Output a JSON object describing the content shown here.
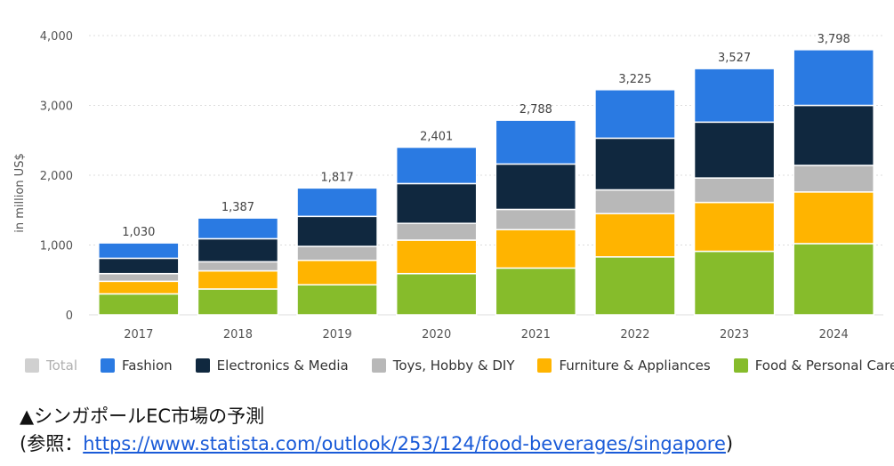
{
  "chart_data": {
    "type": "bar",
    "stacked": true,
    "categories": [
      "2017",
      "2018",
      "2019",
      "2020",
      "2021",
      "2022",
      "2023",
      "2024"
    ],
    "series": [
      {
        "name": "Food & Personal Care",
        "color": "#86bc2b",
        "values": [
          300,
          370,
          430,
          590,
          670,
          830,
          910,
          1020
        ]
      },
      {
        "name": "Furniture & Appliances",
        "color": "#ffb400",
        "values": [
          180,
          260,
          350,
          480,
          550,
          620,
          700,
          740
        ]
      },
      {
        "name": "Toys, Hobby & DIY",
        "color": "#b8b8b8",
        "values": [
          110,
          130,
          200,
          240,
          290,
          340,
          350,
          380
        ]
      },
      {
        "name": "Electronics & Media",
        "color": "#10283f",
        "values": [
          220,
          330,
          430,
          570,
          650,
          740,
          800,
          860
        ]
      },
      {
        "name": "Fashion",
        "color": "#2a7ae2",
        "values": [
          220,
          297,
          407,
          521,
          628,
          695,
          767,
          798
        ]
      }
    ],
    "totals": [
      1030,
      1387,
      1817,
      2401,
      2788,
      3225,
      3527,
      3798
    ],
    "total_labels": [
      "1,030",
      "1,387",
      "1,817",
      "2,401",
      "2,788",
      "3,225",
      "3,527",
      "3,798"
    ],
    "ylabel": "in million US$",
    "ylim": [
      0,
      4000
    ],
    "yticks": [
      0,
      1000,
      2000,
      3000,
      4000
    ],
    "ytick_labels": [
      "0",
      "1,000",
      "2,000",
      "3,000",
      "4,000"
    ],
    "grid": true,
    "legend_position": "bottom"
  },
  "legend": [
    {
      "label": "Total",
      "color": "#d0d0d0",
      "muted": true
    },
    {
      "label": "Fashion",
      "color": "#2a7ae2"
    },
    {
      "label": "Electronics & Media",
      "color": "#10283f"
    },
    {
      "label": "Toys, Hobby & DIY",
      "color": "#b8b8b8"
    },
    {
      "label": "Furniture & Appliances",
      "color": "#ffb400"
    },
    {
      "label": "Food & Personal Care",
      "color": "#86bc2b"
    }
  ],
  "caption": {
    "line1": "▲シンガポールEC市場の予測",
    "line2_prefix": "(参照：",
    "line2_link": "https://www.statista.com/outlook/253/124/food-beverages/singapore",
    "line2_suffix": ")"
  }
}
